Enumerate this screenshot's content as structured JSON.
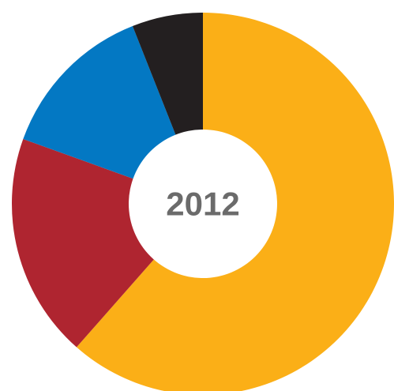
{
  "chart_data": {
    "type": "pie",
    "center_label": "2012",
    "slices": [
      {
        "value": 61.5,
        "color": "#FBAF17"
      },
      {
        "value": 19.0,
        "color": "#AF2530"
      },
      {
        "value": 13.5,
        "color": "#0378C3"
      },
      {
        "value": 6.0,
        "color": "#231F20"
      }
    ]
  }
}
